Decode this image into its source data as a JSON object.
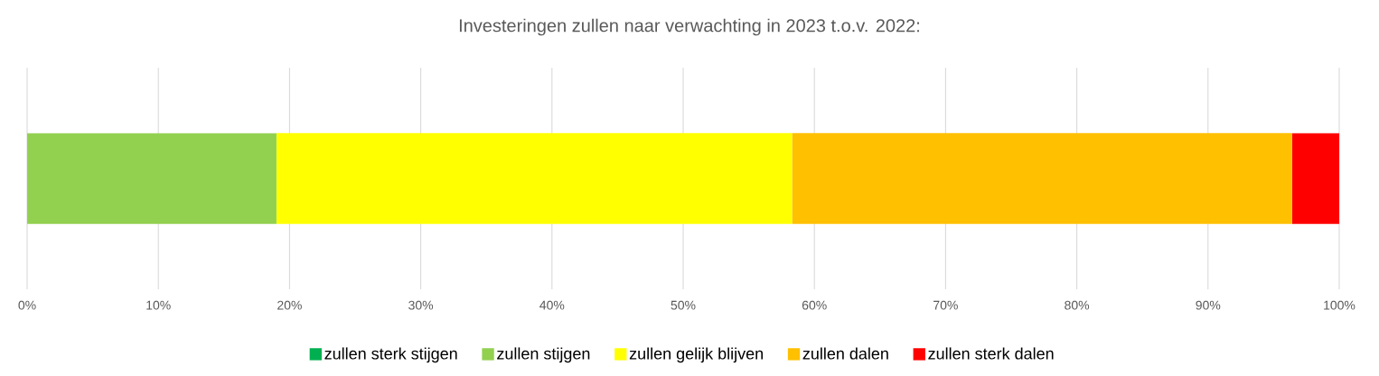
{
  "chart_data": {
    "type": "bar",
    "orientation": "horizontal",
    "stacked": true,
    "title": "Investeringen zullen naar verwachting in 2023 t.o.v. 2022:",
    "categories": [
      null
    ],
    "series": [
      {
        "name": "zullen sterk stijgen",
        "color": "#00b050",
        "values": [
          0
        ]
      },
      {
        "name": "zullen stijgen",
        "color": "#92d050",
        "values": [
          19.0
        ]
      },
      {
        "name": "zullen gelijk blijven",
        "color": "#ffff00",
        "values": [
          39.3
        ]
      },
      {
        "name": "zullen dalen",
        "color": "#ffc000",
        "values": [
          38.1
        ]
      },
      {
        "name": "zullen sterk dalen",
        "color": "#ff0000",
        "values": [
          3.6
        ]
      }
    ],
    "xlim": [
      0,
      100
    ],
    "xticks": [
      {
        "value": 0,
        "label": "0%"
      },
      {
        "value": 10,
        "label": "10%"
      },
      {
        "value": 20,
        "label": "20%"
      },
      {
        "value": 30,
        "label": "30%"
      },
      {
        "value": 40,
        "label": "40%"
      },
      {
        "value": 50,
        "label": "50%"
      },
      {
        "value": 60,
        "label": "60%"
      },
      {
        "value": 70,
        "label": "70%"
      },
      {
        "value": 80,
        "label": "80%"
      },
      {
        "value": 90,
        "label": "90%"
      },
      {
        "value": 100,
        "label": "100%"
      }
    ],
    "grid": "x",
    "legend": "bottom"
  }
}
